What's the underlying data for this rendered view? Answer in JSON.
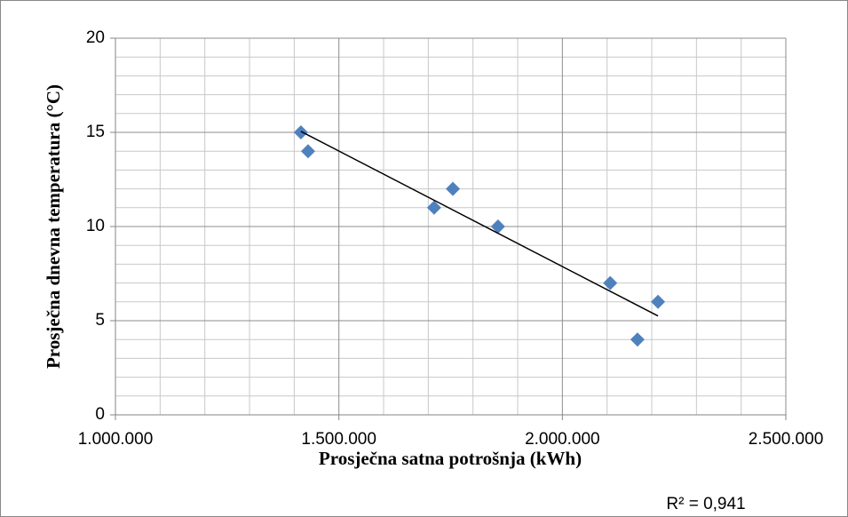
{
  "chart_data": {
    "type": "scatter",
    "x_label": "Prosječna satna potrošnja (kWh)",
    "y_label": "Prosječna dnevna temperatura (°C)",
    "series": [
      {
        "color": "#4f81bd",
        "x": [
          1415000,
          1431000,
          1713000,
          1755000,
          1856000,
          2107000,
          2168000,
          2214000
        ],
        "values": [
          15,
          14,
          11,
          12,
          10,
          7,
          4,
          6
        ]
      }
    ],
    "trendline": {
      "x": [
        1415000,
        2214000
      ],
      "values": [
        15.05,
        5.25
      ],
      "color": "#000000",
      "annotation": "R² = 0,941"
    },
    "xlim": [
      1000000,
      2500000
    ],
    "xticks": [
      {
        "value": 1000000,
        "label": "1.000.000"
      },
      {
        "value": 1500000,
        "label": "1.500.000"
      },
      {
        "value": 2000000,
        "label": "2.000.000"
      },
      {
        "value": 2500000,
        "label": "2.500.000"
      }
    ],
    "ylim": [
      0,
      20
    ],
    "yticks": [
      0,
      5,
      10,
      15,
      20
    ],
    "grid": true,
    "minor_grid": true
  }
}
